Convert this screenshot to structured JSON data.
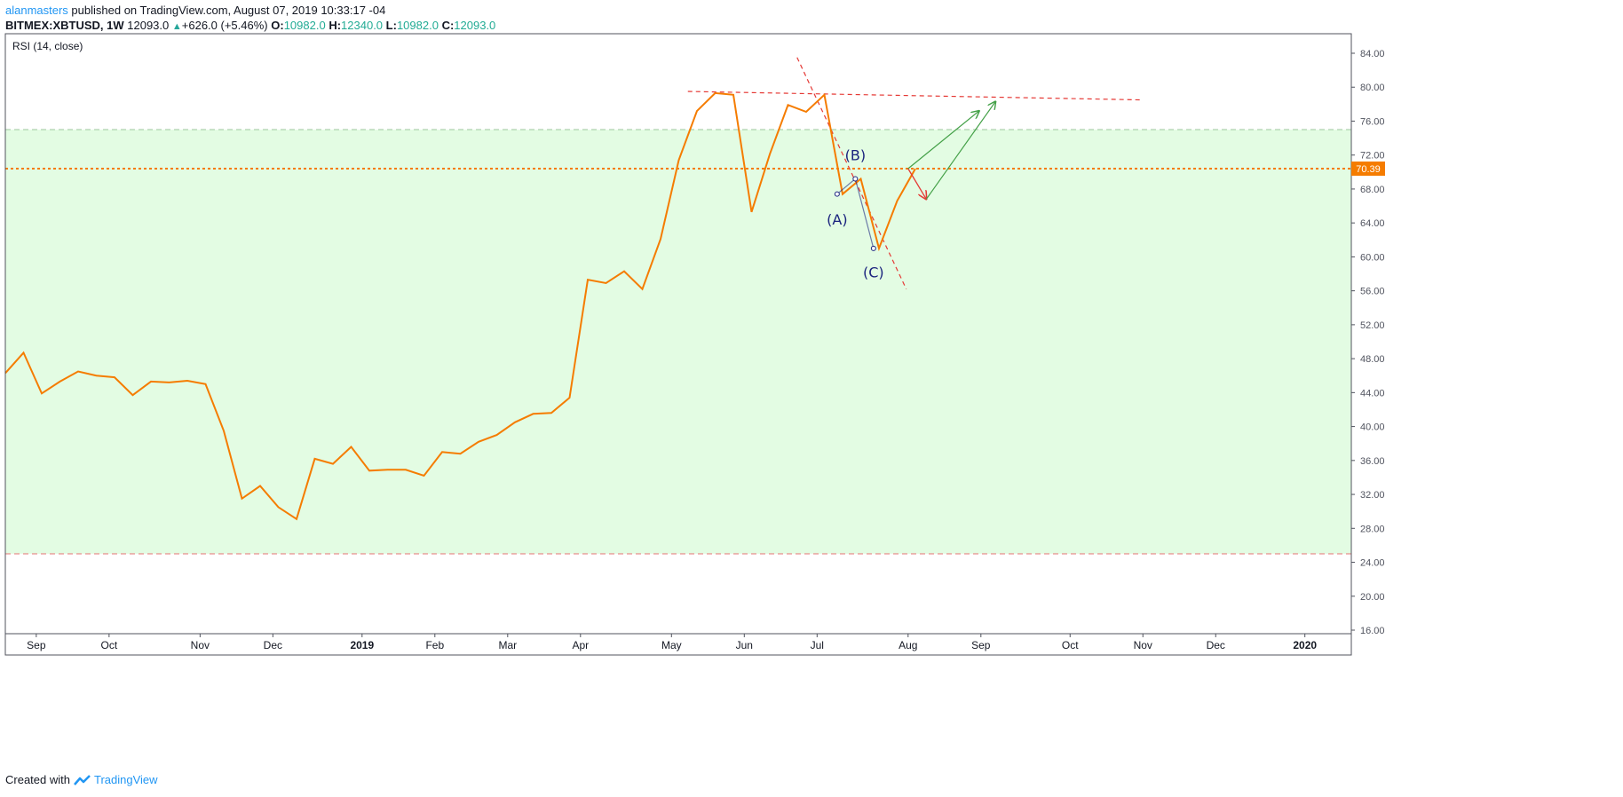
{
  "header": {
    "author": "alanmasters",
    "published_text": " published on TradingView.com, August 07, 2019 10:33:17 -04",
    "symbol": "BITMEX:XBTUSD, 1W",
    "last": "12093.0",
    "change": "+626.0 (+5.46%)",
    "o_label": "O:",
    "o_value": "10982.0",
    "h_label": "H:",
    "h_value": "12340.0",
    "l_label": "L:",
    "l_value": "10982.0",
    "c_label": "C:",
    "c_value": "12093.0"
  },
  "footer": {
    "created_with": "Created with",
    "brand": "TradingView"
  },
  "colors": {
    "rsi_line": "#f57c00",
    "band_fill": "#e3fce3",
    "trend_red": "#e53935",
    "arrow_green": "#43a047",
    "wave_blue": "#1a237e",
    "last_value_bg": "#f57c00"
  },
  "chart_data": {
    "type": "line",
    "title": "RSI (14, close)",
    "last_value_label": "70.39",
    "ylim": [
      16,
      86
    ],
    "y_ticks": [
      "84.00",
      "80.00",
      "76.00",
      "72.00",
      "68.00",
      "64.00",
      "60.00",
      "56.00",
      "52.00",
      "48.00",
      "44.00",
      "40.00",
      "36.00",
      "32.00",
      "28.00",
      "24.00",
      "20.00",
      "16.00"
    ],
    "bands": {
      "upper": 75,
      "lower": 25
    },
    "x_start_week": 0,
    "x_end_week": 73,
    "x_ticks": [
      {
        "label": "Sep",
        "week": 1.7
      },
      {
        "label": "Oct",
        "week": 5.7
      },
      {
        "label": "Nov",
        "week": 10.7
      },
      {
        "label": "Dec",
        "week": 14.7
      },
      {
        "label": "2019",
        "week": 19.6,
        "bold": true
      },
      {
        "label": "Feb",
        "week": 23.6
      },
      {
        "label": "Mar",
        "week": 27.6
      },
      {
        "label": "Apr",
        "week": 31.6
      },
      {
        "label": "May",
        "week": 36.6
      },
      {
        "label": "Jun",
        "week": 40.6
      },
      {
        "label": "Jul",
        "week": 44.6
      },
      {
        "label": "Aug",
        "week": 49.6
      },
      {
        "label": "Sep",
        "week": 53.6
      },
      {
        "label": "Oct",
        "week": 58.5
      },
      {
        "label": "Nov",
        "week": 62.5
      },
      {
        "label": "Dec",
        "week": 66.5
      },
      {
        "label": "2020",
        "week": 71.4,
        "bold": true
      }
    ],
    "series": [
      {
        "values": [
          46.3,
          48.7,
          43.9,
          45.3,
          46.5,
          46.0,
          45.8,
          43.7,
          45.3,
          45.2,
          45.4,
          45.0,
          39.5,
          31.5,
          33.0,
          30.5,
          29.1,
          36.2,
          35.6,
          37.6,
          34.8,
          34.9,
          34.9,
          34.2,
          37.0,
          36.8,
          38.2,
          39.0,
          40.5,
          41.5,
          41.6,
          43.4,
          57.3,
          56.9,
          58.3,
          56.2,
          62.1,
          71.4,
          77.2,
          79.3,
          79.1,
          65.3,
          72.1,
          77.9,
          77.1,
          79.1,
          67.4,
          69.2,
          61.0,
          66.6,
          70.4
        ]
      }
    ],
    "annotations": {
      "waves": [
        {
          "label": "(A)",
          "week": 45.7,
          "value": 63.8,
          "point_value": 67.4,
          "point_week": 45.7
        },
        {
          "label": "(B)",
          "week": 46.7,
          "value": 71.4,
          "point_value": 69.2,
          "point_week": 46.7
        },
        {
          "label": "(C)",
          "week": 47.7,
          "value": 57.6,
          "point_value": 61.0,
          "point_week": 47.7
        }
      ],
      "trendlines": [
        {
          "from": [
            37.5,
            79.5
          ],
          "to": [
            62.5,
            78.5
          ]
        },
        {
          "from": [
            43.5,
            83.5
          ],
          "to": [
            49.5,
            56.2
          ]
        }
      ],
      "red_arrow": {
        "from": [
          49.6,
          70.4
        ],
        "to": [
          50.6,
          66.8
        ]
      },
      "green_arrows": [
        {
          "from": [
            49.6,
            70.4
          ],
          "to": [
            53.5,
            77.2
          ]
        },
        {
          "from": [
            50.6,
            66.8
          ],
          "to": [
            54.4,
            78.3
          ]
        }
      ]
    }
  }
}
